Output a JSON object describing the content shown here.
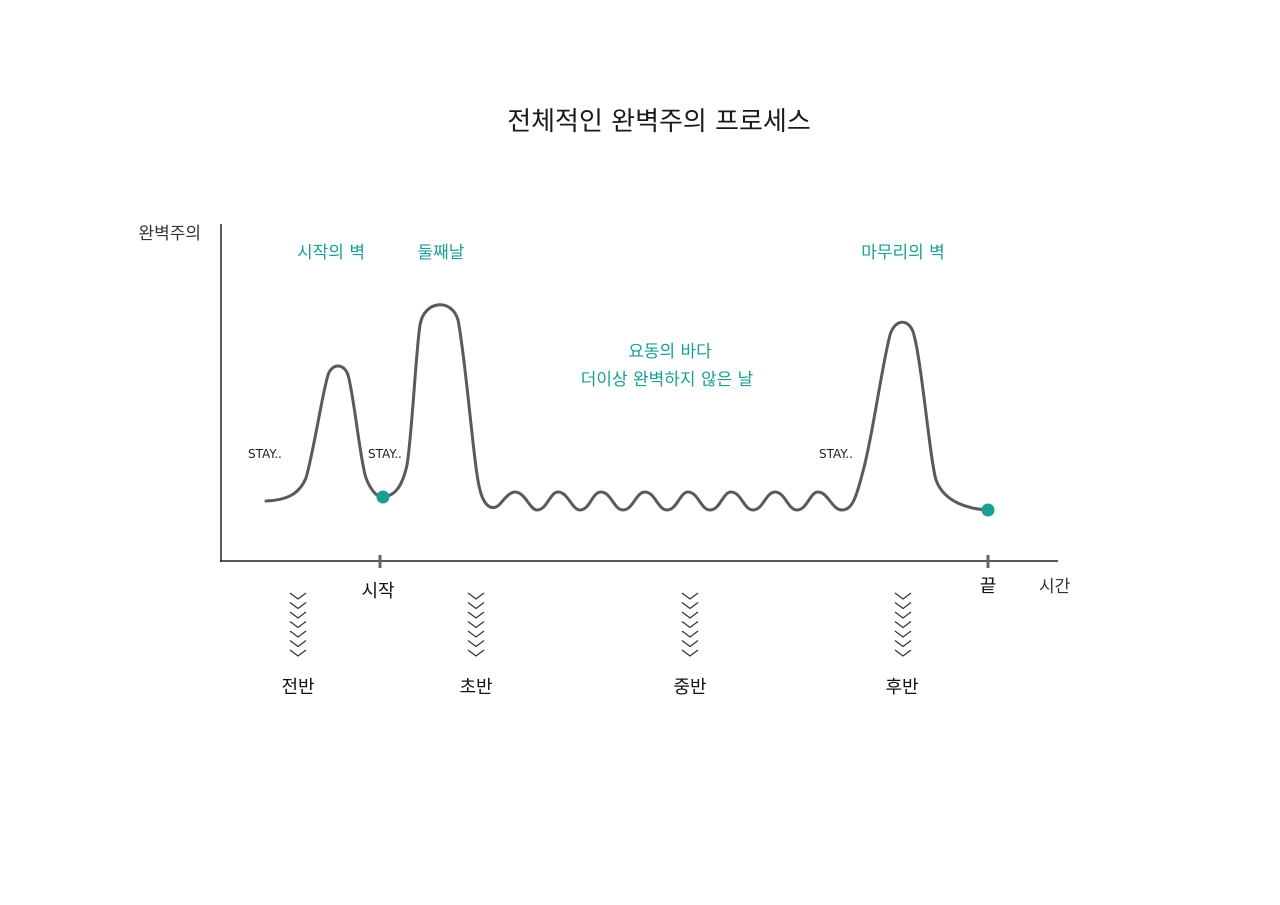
{
  "title": "전체적인 완벽주의 프로세스",
  "axes": {
    "y_label": "완벽주의",
    "x_label": "시간"
  },
  "annotations": {
    "start_wall": "시작의 벽",
    "second_day": "둘째날",
    "sea_line1": "요동의 바다",
    "sea_line2": "더이상 완벽하지 않은 날",
    "finish_wall": "마무리의 벽"
  },
  "stay_labels": [
    "STAY..",
    "STAY..",
    "STAY.."
  ],
  "ticks": {
    "start": "시작",
    "end": "끝"
  },
  "phases": [
    "전반",
    "초반",
    "중반",
    "후반"
  ],
  "colors": {
    "accent": "#1a9e96",
    "curve": "#5a5a5a",
    "axis": "#222222"
  }
}
